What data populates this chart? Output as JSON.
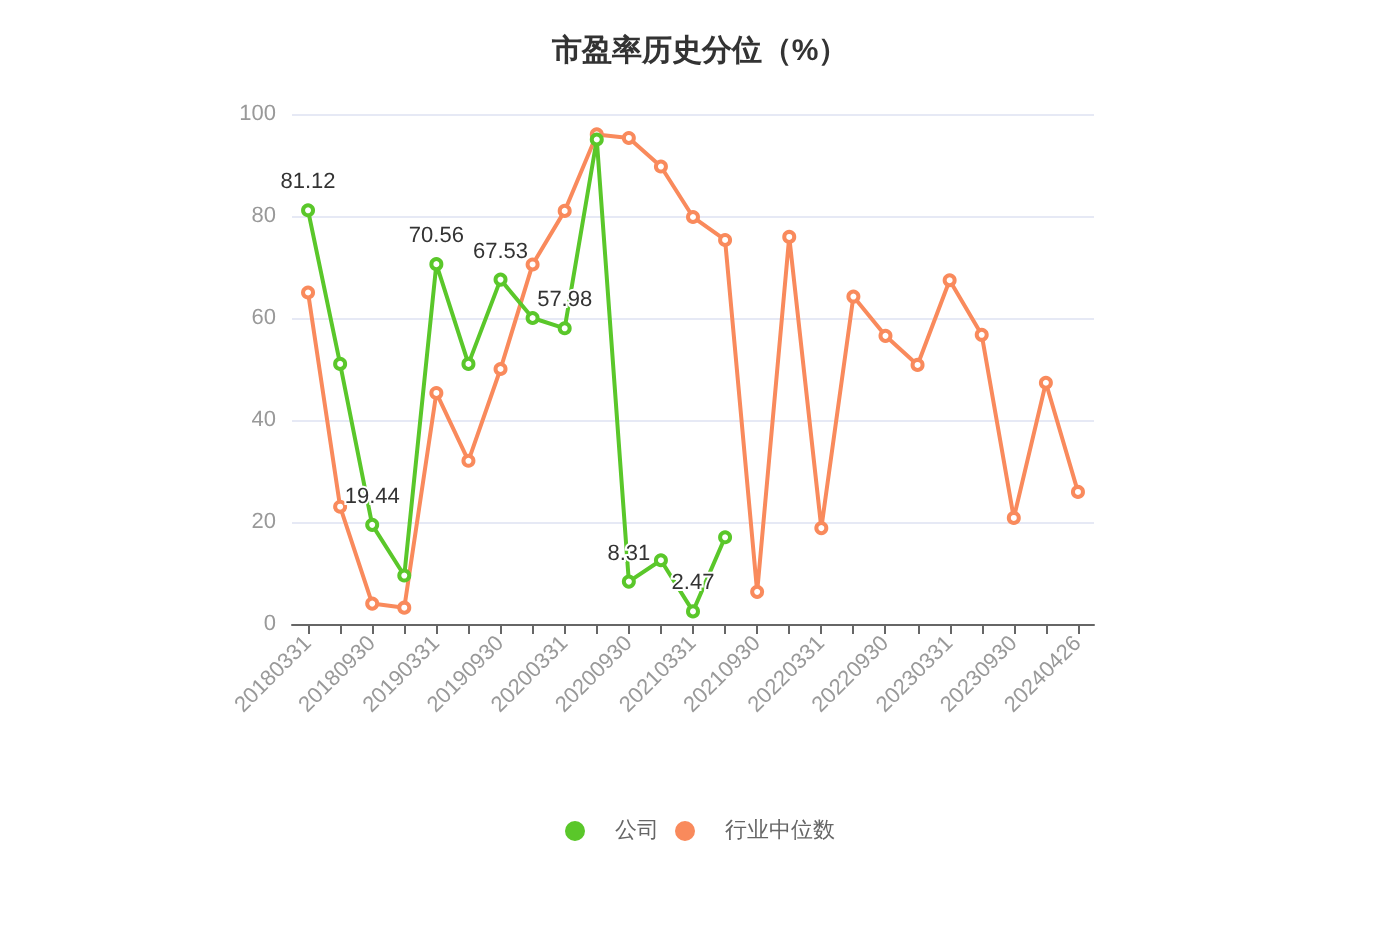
{
  "chart_data": {
    "type": "line",
    "title": "市盈率历史分位（%）",
    "categories": [
      "20180331",
      null,
      "20180930",
      null,
      "20190331",
      null,
      "20190930",
      null,
      "20200331",
      null,
      "20200930",
      null,
      "20210331",
      null,
      "20210930",
      null,
      "20220331",
      null,
      "20220930",
      null,
      "20230331",
      null,
      "20230930",
      null,
      "20240426"
    ],
    "series": [
      {
        "name": "公司",
        "color": "#5ac72a",
        "values": [
          81.12,
          51,
          19.44,
          9.5,
          70.56,
          51,
          67.53,
          60,
          57.98,
          95,
          8.31,
          12.5,
          2.47,
          17,
          null,
          null,
          null,
          null,
          null,
          null,
          null,
          null,
          null,
          null,
          null
        ],
        "value_labels": [
          "81.12",
          null,
          "19.44",
          null,
          "70.56",
          null,
          "67.53",
          null,
          "57.98",
          null,
          "8.31",
          null,
          "2.47",
          null,
          null,
          null,
          null,
          null,
          null,
          null,
          null,
          null,
          null,
          null,
          null
        ]
      },
      {
        "name": "行业中位数",
        "color": "#f98a5c",
        "values": [
          65,
          23,
          4,
          3.2,
          45.3,
          32,
          50,
          70.5,
          81,
          96,
          95.3,
          89.7,
          79.8,
          75.3,
          6.3,
          75.9,
          18.8,
          64.2,
          56.5,
          50.8,
          67.4,
          56.7,
          20.8,
          47.3,
          25.9
        ]
      }
    ],
    "ylim": [
      0,
      100
    ],
    "yticks": [
      0,
      20,
      40,
      60,
      80,
      100
    ],
    "grid": "y",
    "legend": "bottom",
    "marker": "circle",
    "line_style": "solid"
  }
}
